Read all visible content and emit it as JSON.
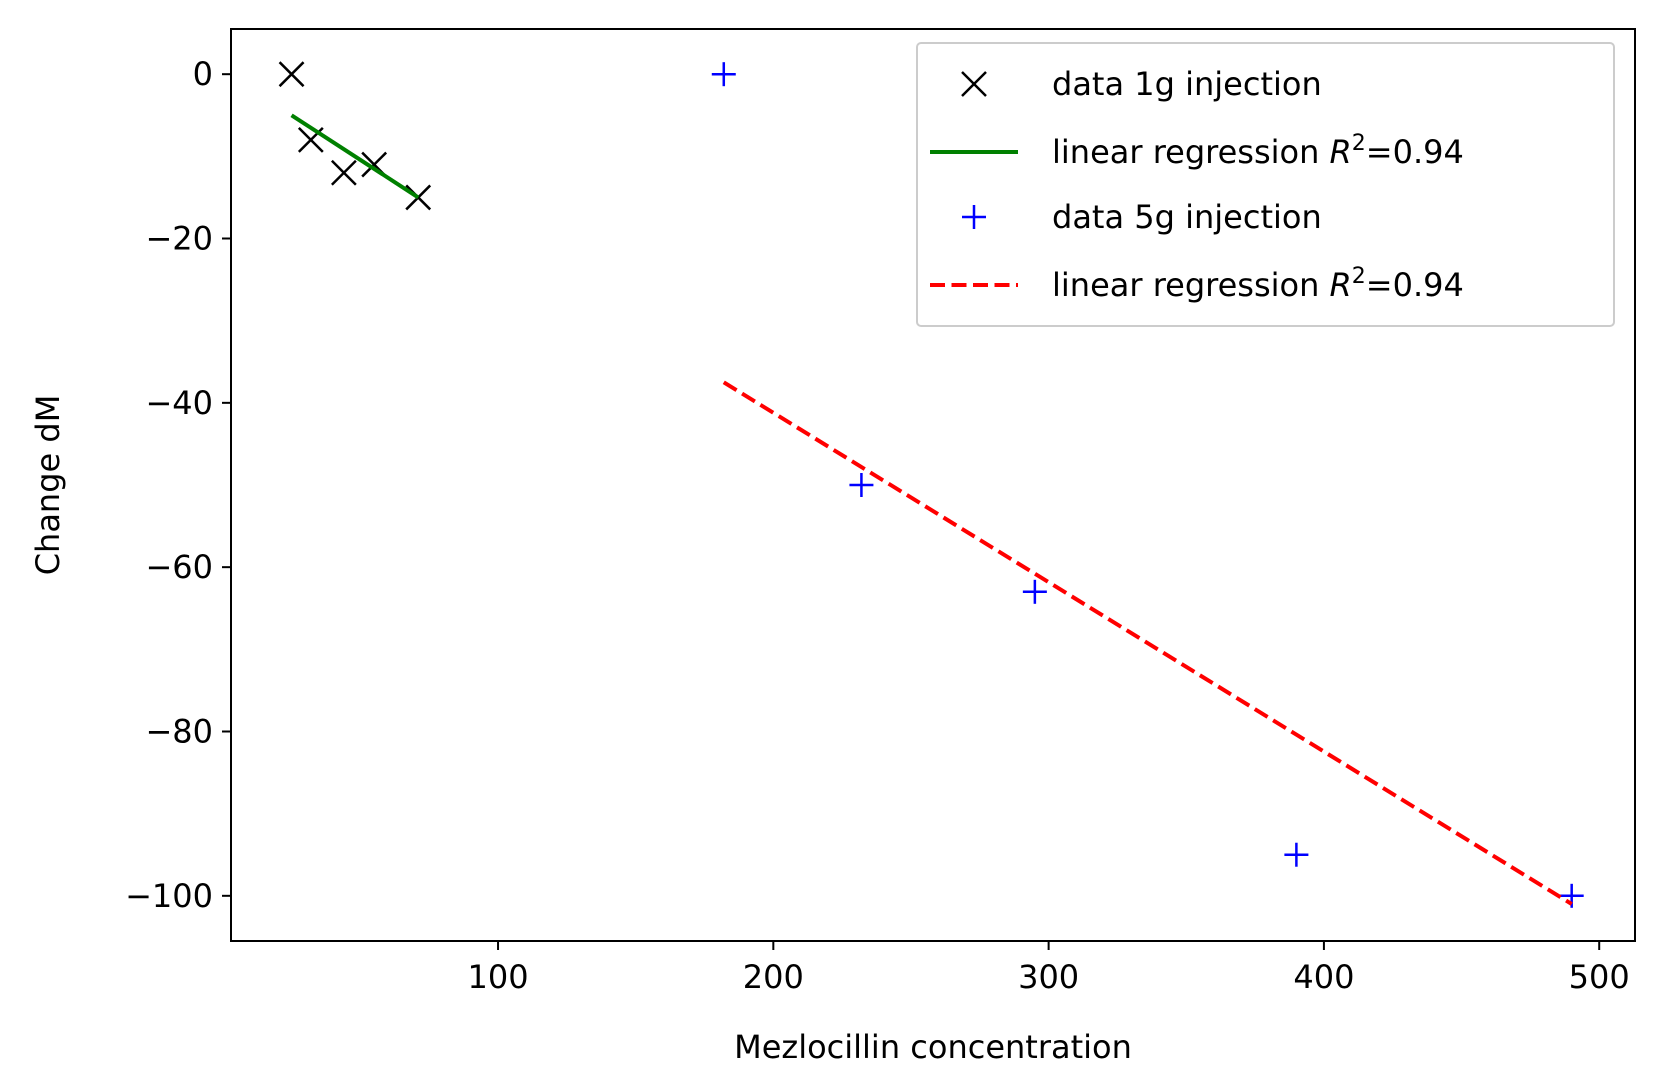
{
  "chart_data": {
    "type": "scatter",
    "xlabel": "Mezlocillin concentration",
    "ylabel": "Change dM",
    "xlim": [
      3,
      513
    ],
    "ylim": [
      -105.5,
      5.5
    ],
    "x_ticks": [
      100,
      200,
      300,
      400,
      500
    ],
    "x_tick_labels": [
      "100",
      "200",
      "300",
      "400",
      "500"
    ],
    "y_ticks": [
      0,
      -20,
      -40,
      -60,
      -80,
      -100
    ],
    "y_tick_labels": [
      "0",
      "−20",
      "−40",
      "−60",
      "−80",
      "−100"
    ],
    "grid": false,
    "legend_position": "top-right",
    "series": [
      {
        "name": "data 1g injection",
        "kind": "markers",
        "marker": "x",
        "color": "#000000",
        "points": [
          [
            25,
            0
          ],
          [
            32,
            -8
          ],
          [
            44,
            -12
          ],
          [
            55,
            -11
          ],
          [
            71,
            -15
          ]
        ]
      },
      {
        "name": "linear regression",
        "name_suffix": "=0.94",
        "kind": "line",
        "style": "solid",
        "color": "#008000",
        "points": [
          [
            25,
            -5
          ],
          [
            71,
            -15
          ]
        ]
      },
      {
        "name": "data 5g injection",
        "kind": "markers",
        "marker": "+",
        "color": "#0000ff",
        "points": [
          [
            182,
            0
          ],
          [
            232,
            -50
          ],
          [
            295,
            -63
          ],
          [
            390,
            -95
          ],
          [
            490,
            -100
          ]
        ]
      },
      {
        "name": "linear regression",
        "name_suffix": "=0.94",
        "kind": "line",
        "style": "dashed",
        "color": "#ff0000",
        "points": [
          [
            182,
            -37.5
          ],
          [
            490,
            -101
          ]
        ]
      }
    ]
  }
}
